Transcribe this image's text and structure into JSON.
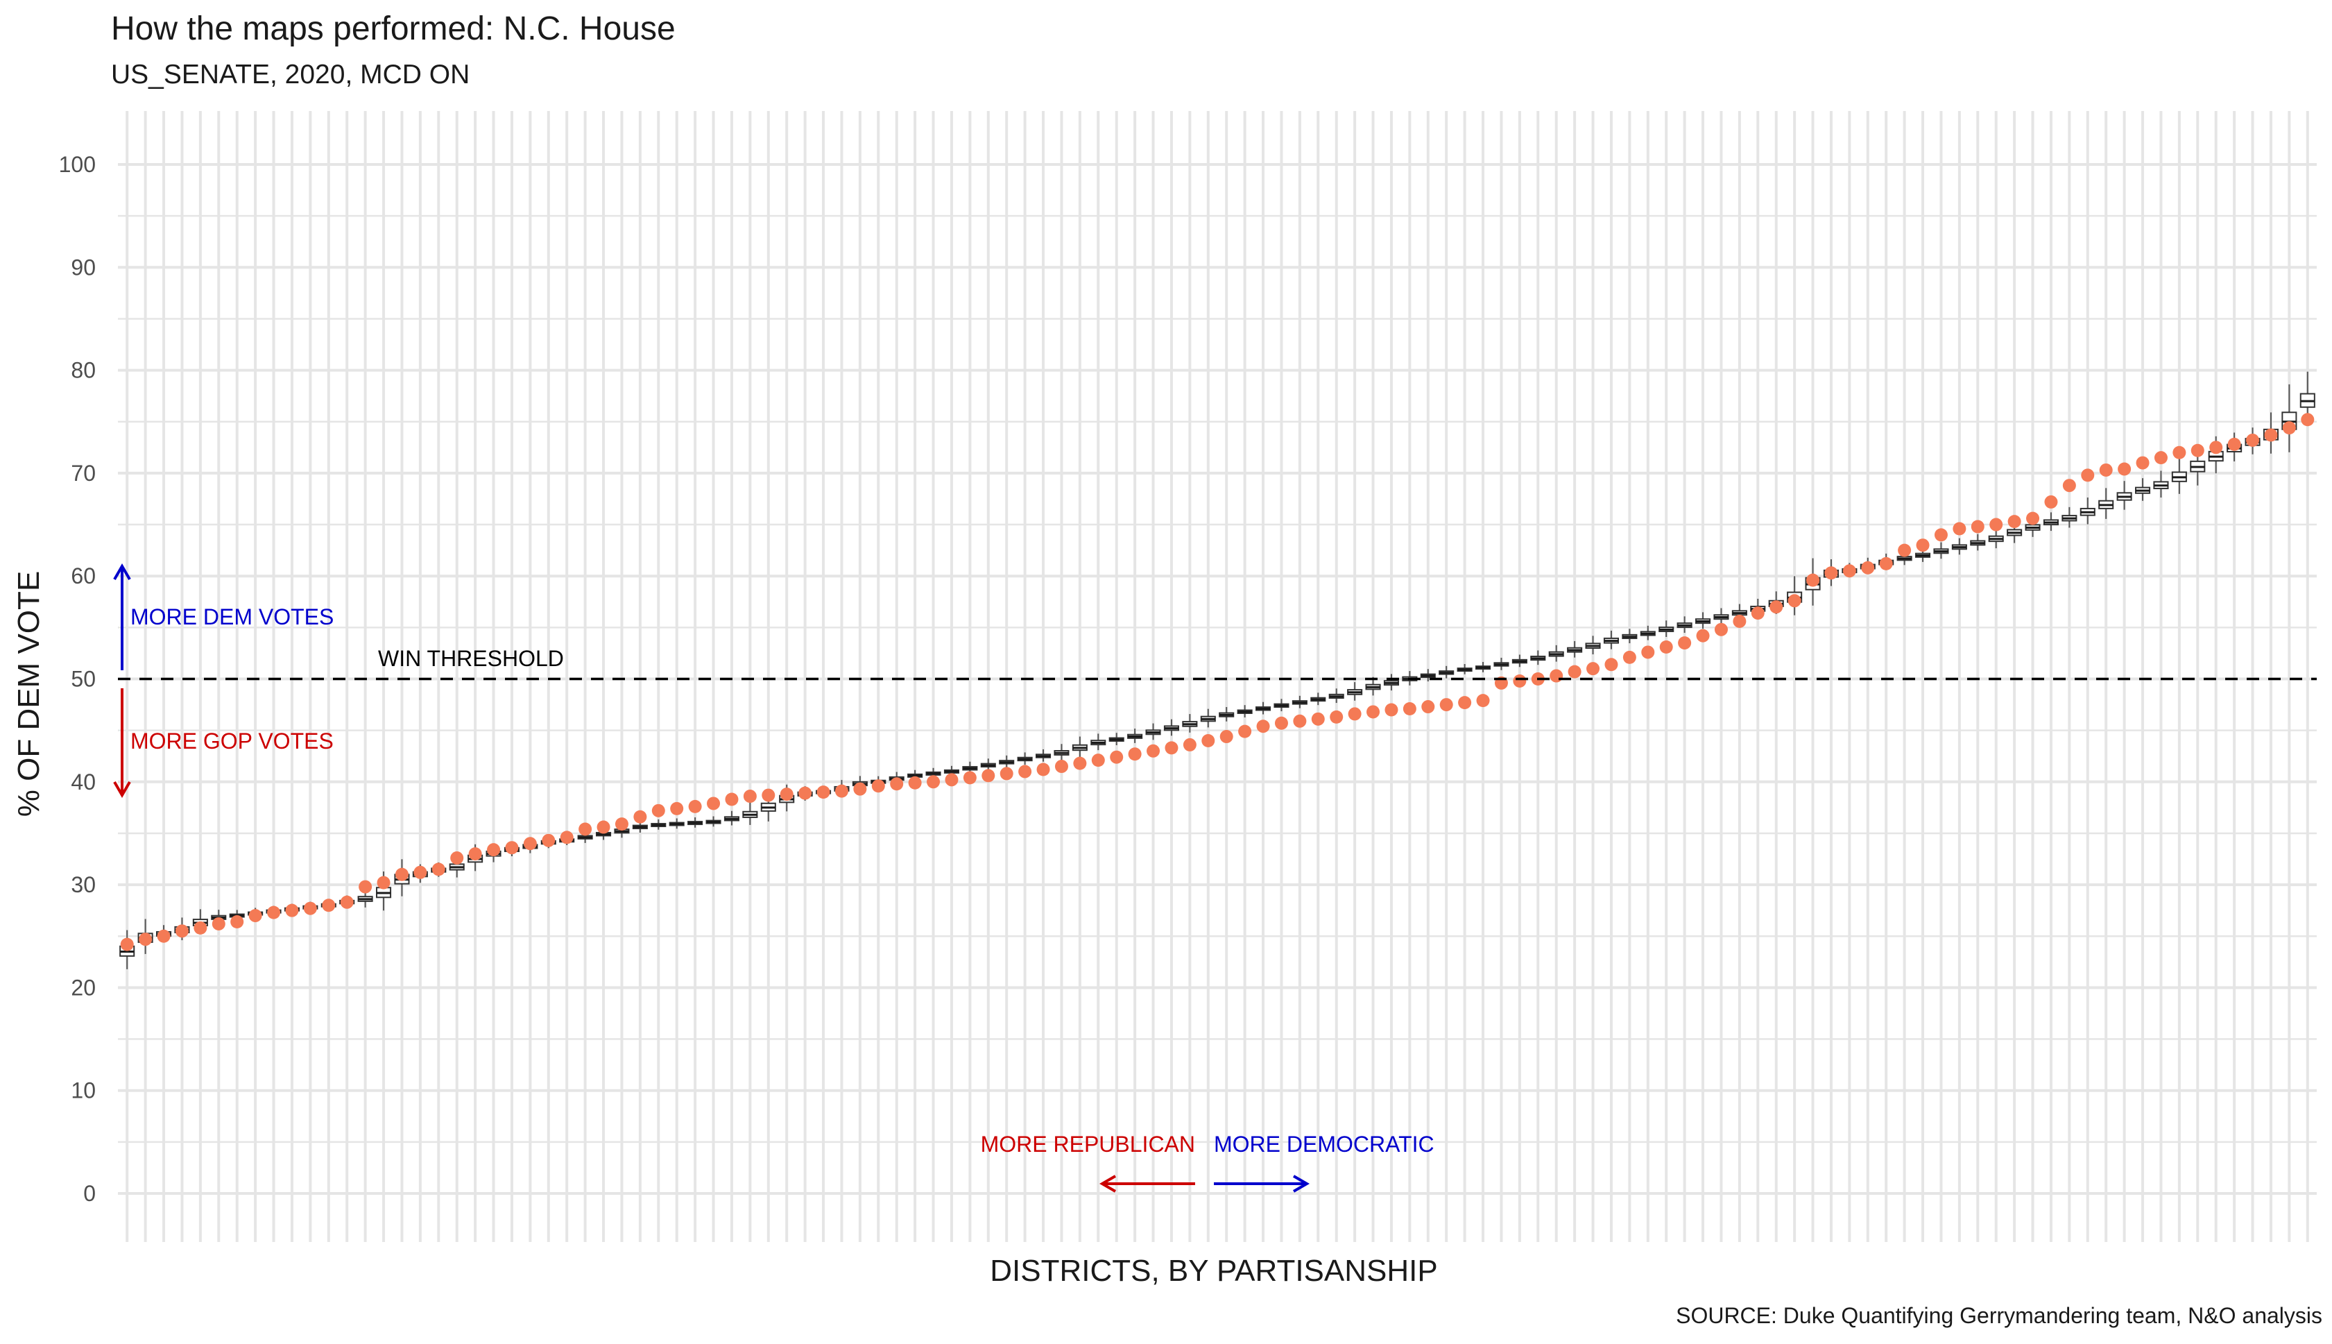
{
  "title": "How the maps performed: N.C. House",
  "subtitle": "US_SENATE, 2020, MCD ON",
  "caption": "SOURCE: Duke Quantifying Gerrymandering team, N&O analysis",
  "annotations": {
    "more_dem_votes": "MORE DEM VOTES",
    "more_gop_votes": "MORE GOP VOTES",
    "win_threshold": "WIN THRESHOLD",
    "more_republican": "MORE REPUBLICAN",
    "more_democratic": "MORE DEMOCRATIC"
  },
  "colors": {
    "enacted_point": "#F47A55",
    "dem": "#0000CC",
    "gop": "#CC0000",
    "grid": "#E5E5E5",
    "box": "#333333"
  },
  "chart_data": {
    "type": "box",
    "xlabel": "DISTRICTS, BY PARTISANSHIP",
    "ylabel": "% OF DEM VOTE",
    "ylim": [
      0,
      100
    ],
    "yticks": [
      0,
      10,
      20,
      30,
      40,
      50,
      60,
      70,
      80,
      90,
      100
    ],
    "threshold": 50,
    "x_tick_labels": "none",
    "grid": true,
    "district_count": 120,
    "box_medians": [
      23.5,
      24.8,
      25.2,
      25.6,
      26.3,
      26.8,
      27.0,
      27.2,
      27.4,
      27.6,
      27.8,
      28.0,
      28.3,
      28.6,
      29.2,
      30.5,
      31.0,
      31.4,
      31.7,
      32.5,
      33.0,
      33.4,
      33.7,
      34.1,
      34.3,
      34.6,
      34.9,
      35.2,
      35.6,
      35.8,
      35.9,
      36.0,
      36.1,
      36.4,
      36.8,
      37.5,
      38.3,
      38.8,
      39.0,
      39.3,
      39.8,
      40.0,
      40.3,
      40.6,
      40.8,
      41.0,
      41.3,
      41.6,
      41.9,
      42.2,
      42.5,
      42.8,
      43.3,
      43.8,
      44.1,
      44.4,
      44.8,
      45.2,
      45.6,
      46.1,
      46.5,
      46.8,
      47.1,
      47.4,
      47.7,
      48.0,
      48.3,
      48.7,
      49.2,
      49.6,
      50.0,
      50.3,
      50.6,
      50.9,
      51.1,
      51.4,
      51.7,
      52.0,
      52.4,
      52.8,
      53.2,
      53.7,
      54.1,
      54.4,
      54.8,
      55.2,
      55.6,
      56.0,
      56.4,
      56.8,
      57.3,
      57.9,
      59.2,
      60.2,
      60.5,
      60.9,
      61.3,
      61.7,
      62.0,
      62.4,
      62.8,
      63.2,
      63.6,
      64.2,
      64.7,
      65.2,
      65.6,
      66.2,
      66.9,
      67.7,
      68.3,
      68.8,
      69.6,
      70.6,
      71.6,
      72.4,
      73.0,
      73.7,
      75.0,
      77.0
    ],
    "enacted_points": [
      24.2,
      24.7,
      25.0,
      25.5,
      25.8,
      26.2,
      26.4,
      27.0,
      27.3,
      27.5,
      27.7,
      28.0,
      28.3,
      29.8,
      30.2,
      31.0,
      31.2,
      31.5,
      32.6,
      33.0,
      33.4,
      33.6,
      34.0,
      34.3,
      34.6,
      35.4,
      35.6,
      35.9,
      36.6,
      37.2,
      37.4,
      37.6,
      37.9,
      38.3,
      38.6,
      38.7,
      38.8,
      38.9,
      39.0,
      39.1,
      39.3,
      39.6,
      39.8,
      39.9,
      40.0,
      40.2,
      40.4,
      40.6,
      40.8,
      41.0,
      41.2,
      41.5,
      41.8,
      42.1,
      42.4,
      42.7,
      43.0,
      43.3,
      43.6,
      44.0,
      44.4,
      44.9,
      45.4,
      45.7,
      45.9,
      46.1,
      46.3,
      46.6,
      46.8,
      47.0,
      47.1,
      47.3,
      47.5,
      47.7,
      47.9,
      49.6,
      49.8,
      50.0,
      50.3,
      50.7,
      51.0,
      51.4,
      52.1,
      52.6,
      53.1,
      53.5,
      54.2,
      54.8,
      55.6,
      56.4,
      57.0,
      57.6,
      59.6,
      60.3,
      60.5,
      60.8,
      61.2,
      62.5,
      63.0,
      64.0,
      64.6,
      64.8,
      65.0,
      65.3,
      65.6,
      67.2,
      68.8,
      69.8,
      70.3,
      70.4,
      71.0,
      71.5,
      72.0,
      72.2,
      72.5,
      72.8,
      73.2,
      73.7,
      74.4,
      75.2
    ]
  }
}
